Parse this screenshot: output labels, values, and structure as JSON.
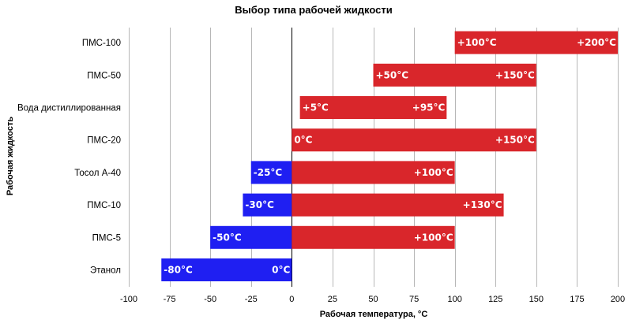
{
  "chart_data": {
    "type": "bar",
    "orientation": "horizontal",
    "stacked": false,
    "title": "Выбор типа рабочей жидкости",
    "xlabel": "Рабочая температура, °C",
    "ylabel": "Рабочая жидкость",
    "xlim": [
      -100,
      200
    ],
    "xticks": [
      -100,
      -75,
      -50,
      -25,
      0,
      25,
      50,
      75,
      100,
      125,
      150,
      175,
      200
    ],
    "xtick_labels": [
      "-100",
      "-75",
      "-50",
      "-25",
      "0",
      "25",
      "50",
      "75",
      "100",
      "125",
      "150",
      "175",
      "200"
    ],
    "categories": [
      "ПМС-100",
      "ПМС-50",
      "Вода дистиллированная",
      "ПМС-20",
      "Тосол А-40",
      "ПМС-10",
      "ПМС-5",
      "Этанол"
    ],
    "ranges": [
      {
        "category": "ПМС-100",
        "min": 100,
        "max": 200,
        "min_label": "+100°C",
        "max_label": "+200°C"
      },
      {
        "category": "ПМС-50",
        "min": 50,
        "max": 150,
        "min_label": "+50°C",
        "max_label": "+150°C"
      },
      {
        "category": "Вода дистиллированная",
        "min": 5,
        "max": 95,
        "min_label": "+5°C",
        "max_label": "+95°C"
      },
      {
        "category": "ПМС-20",
        "min": 0,
        "max": 150,
        "min_label": "0°C",
        "max_label": "+150°C"
      },
      {
        "category": "Тосол А-40",
        "min": -25,
        "max": 100,
        "min_label": "-25°C",
        "max_label": "+100°C"
      },
      {
        "category": "ПМС-10",
        "min": -30,
        "max": 130,
        "min_label": "-30°C",
        "max_label": "+130°C"
      },
      {
        "category": "ПМС-5",
        "min": -50,
        "max": 100,
        "min_label": "-50°C",
        "max_label": "+100°C"
      },
      {
        "category": "Этанол",
        "min": -80,
        "max": 0,
        "min_label": "-80°C",
        "max_label": "0°C"
      }
    ],
    "colors": {
      "negative": "#1f1ff2",
      "positive": "#d9262b",
      "grid": "#b7b7b7"
    },
    "grid": true,
    "legend": false
  }
}
